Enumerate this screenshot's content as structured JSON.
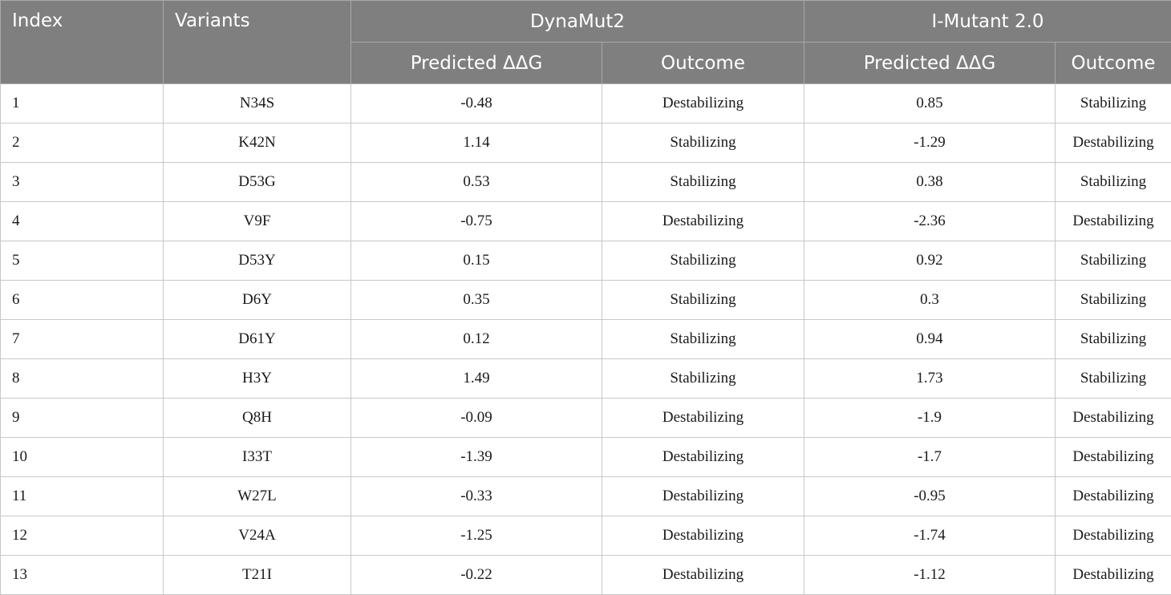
{
  "header": {
    "index": "Index",
    "variants": "Variants",
    "group1": "DynaMut2",
    "group2": "I-Mutant 2.0",
    "predicted": "Predicted ΔΔG",
    "outcome": "Outcome"
  },
  "rows": [
    {
      "index": "1",
      "variant": "N34S",
      "dyn_ddg": "-0.48",
      "dyn_outcome": "Destabilizing",
      "imut_ddg": "0.85",
      "imut_outcome": "Stabilizing"
    },
    {
      "index": "2",
      "variant": "K42N",
      "dyn_ddg": "1.14",
      "dyn_outcome": "Stabilizing",
      "imut_ddg": "-1.29",
      "imut_outcome": "Destabilizing"
    },
    {
      "index": "3",
      "variant": "D53G",
      "dyn_ddg": "0.53",
      "dyn_outcome": "Stabilizing",
      "imut_ddg": "0.38",
      "imut_outcome": "Stabilizing"
    },
    {
      "index": "4",
      "variant": "V9F",
      "dyn_ddg": "-0.75",
      "dyn_outcome": "Destabilizing",
      "imut_ddg": "-2.36",
      "imut_outcome": "Destabilizing"
    },
    {
      "index": "5",
      "variant": "D53Y",
      "dyn_ddg": "0.15",
      "dyn_outcome": "Stabilizing",
      "imut_ddg": "0.92",
      "imut_outcome": "Stabilizing"
    },
    {
      "index": "6",
      "variant": "D6Y",
      "dyn_ddg": "0.35",
      "dyn_outcome": "Stabilizing",
      "imut_ddg": "0.3",
      "imut_outcome": "Stabilizing"
    },
    {
      "index": "7",
      "variant": "D61Y",
      "dyn_ddg": "0.12",
      "dyn_outcome": "Stabilizing",
      "imut_ddg": "0.94",
      "imut_outcome": "Stabilizing"
    },
    {
      "index": "8",
      "variant": "H3Y",
      "dyn_ddg": "1.49",
      "dyn_outcome": "Stabilizing",
      "imut_ddg": "1.73",
      "imut_outcome": "Stabilizing"
    },
    {
      "index": "9",
      "variant": "Q8H",
      "dyn_ddg": "-0.09",
      "dyn_outcome": "Destabilizing",
      "imut_ddg": "-1.9",
      "imut_outcome": "Destabilizing"
    },
    {
      "index": "10",
      "variant": "I33T",
      "dyn_ddg": "-1.39",
      "dyn_outcome": "Destabilizing",
      "imut_ddg": "-1.7",
      "imut_outcome": "Destabilizing"
    },
    {
      "index": "11",
      "variant": "W27L",
      "dyn_ddg": "-0.33",
      "dyn_outcome": "Destabilizing",
      "imut_ddg": "-0.95",
      "imut_outcome": "Destabilizing"
    },
    {
      "index": "12",
      "variant": "V24A",
      "dyn_ddg": "-1.25",
      "dyn_outcome": "Destabilizing",
      "imut_ddg": "-1.74",
      "imut_outcome": "Destabilizing"
    },
    {
      "index": "13",
      "variant": "T21I",
      "dyn_ddg": "-0.22",
      "dyn_outcome": "Destabilizing",
      "imut_ddg": "-1.12",
      "imut_outcome": "Destabilizing"
    }
  ]
}
